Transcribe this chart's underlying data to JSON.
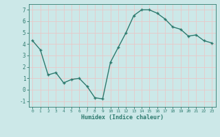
{
  "x": [
    0,
    1,
    2,
    3,
    4,
    5,
    6,
    7,
    8,
    9,
    10,
    11,
    12,
    13,
    14,
    15,
    16,
    17,
    18,
    19,
    20,
    21,
    22,
    23
  ],
  "y": [
    4.3,
    3.5,
    1.3,
    1.5,
    0.6,
    0.9,
    1.0,
    0.3,
    -0.7,
    -0.8,
    2.4,
    3.7,
    5.0,
    6.5,
    7.0,
    7.0,
    6.7,
    6.2,
    5.5,
    5.3,
    4.7,
    4.8,
    4.3,
    4.1
  ],
  "xlabel": "Humidex (Indice chaleur)",
  "ylim": [
    -1.5,
    7.5
  ],
  "xlim": [
    -0.5,
    23.5
  ],
  "yticks": [
    -1,
    0,
    1,
    2,
    3,
    4,
    5,
    6,
    7
  ],
  "xticks": [
    0,
    1,
    2,
    3,
    4,
    5,
    6,
    7,
    8,
    9,
    10,
    11,
    12,
    13,
    14,
    15,
    16,
    17,
    18,
    19,
    20,
    21,
    22,
    23
  ],
  "line_color": "#2d7a6e",
  "marker_color": "#2d7a6e",
  "bg_color": "#cce8e8",
  "grid_color": "#e8c8c8",
  "tick_color": "#2d7a6e",
  "label_color": "#2d7a6e"
}
